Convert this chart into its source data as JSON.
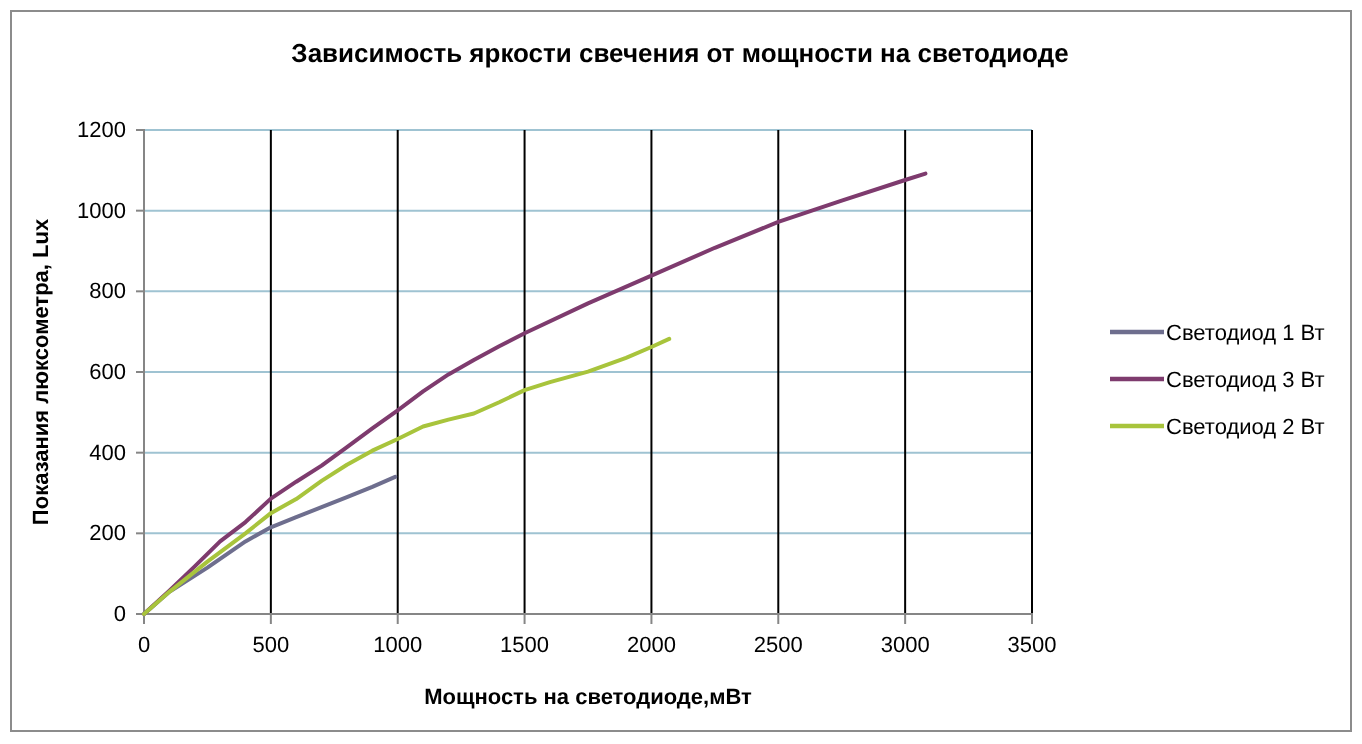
{
  "chart_data": {
    "type": "line",
    "title": "Зависимость яркости свечения от мощности на светодиоде",
    "xlabel": "Мощность на светодиоде,мВт",
    "ylabel": "Показания люксометра, Lux",
    "xlim": [
      0,
      3500
    ],
    "xticks": [
      0,
      500,
      1000,
      1500,
      2000,
      2500,
      3000,
      3500
    ],
    "ylim": [
      0,
      1200
    ],
    "yticks": [
      0,
      200,
      400,
      600,
      800,
      1000,
      1200
    ],
    "grid": true,
    "legend": "right",
    "series": [
      {
        "name": "Светодиод 1 Вт",
        "color": "#6e6e8e",
        "x": [
          0,
          100,
          250,
          400,
          500,
          600,
          700,
          800,
          900,
          990
        ],
        "values": [
          0,
          55,
          115,
          180,
          215,
          240,
          265,
          290,
          315,
          340
        ]
      },
      {
        "name": "Светодиод 3 Вт",
        "color": "#7e3b6e",
        "x": [
          0,
          100,
          200,
          300,
          400,
          500,
          600,
          700,
          800,
          900,
          1000,
          1100,
          1200,
          1300,
          1400,
          1500,
          1750,
          2000,
          2250,
          2500,
          2750,
          3000,
          3080
        ],
        "values": [
          0,
          58,
          118,
          180,
          228,
          286,
          328,
          368,
          414,
          460,
          505,
          552,
          594,
          630,
          664,
          696,
          770,
          839,
          908,
          972,
          1025,
          1076,
          1092
        ]
      },
      {
        "name": "Светодиод 2 Вт",
        "color": "#a8c43c",
        "x": [
          0,
          100,
          250,
          400,
          500,
          600,
          700,
          800,
          900,
          1000,
          1100,
          1200,
          1300,
          1400,
          1500,
          1600,
          1750,
          1900,
          2000,
          2070
        ],
        "values": [
          0,
          55,
          130,
          200,
          250,
          285,
          330,
          370,
          405,
          434,
          465,
          482,
          497,
          525,
          555,
          575,
          601,
          635,
          662,
          682
        ]
      }
    ]
  }
}
